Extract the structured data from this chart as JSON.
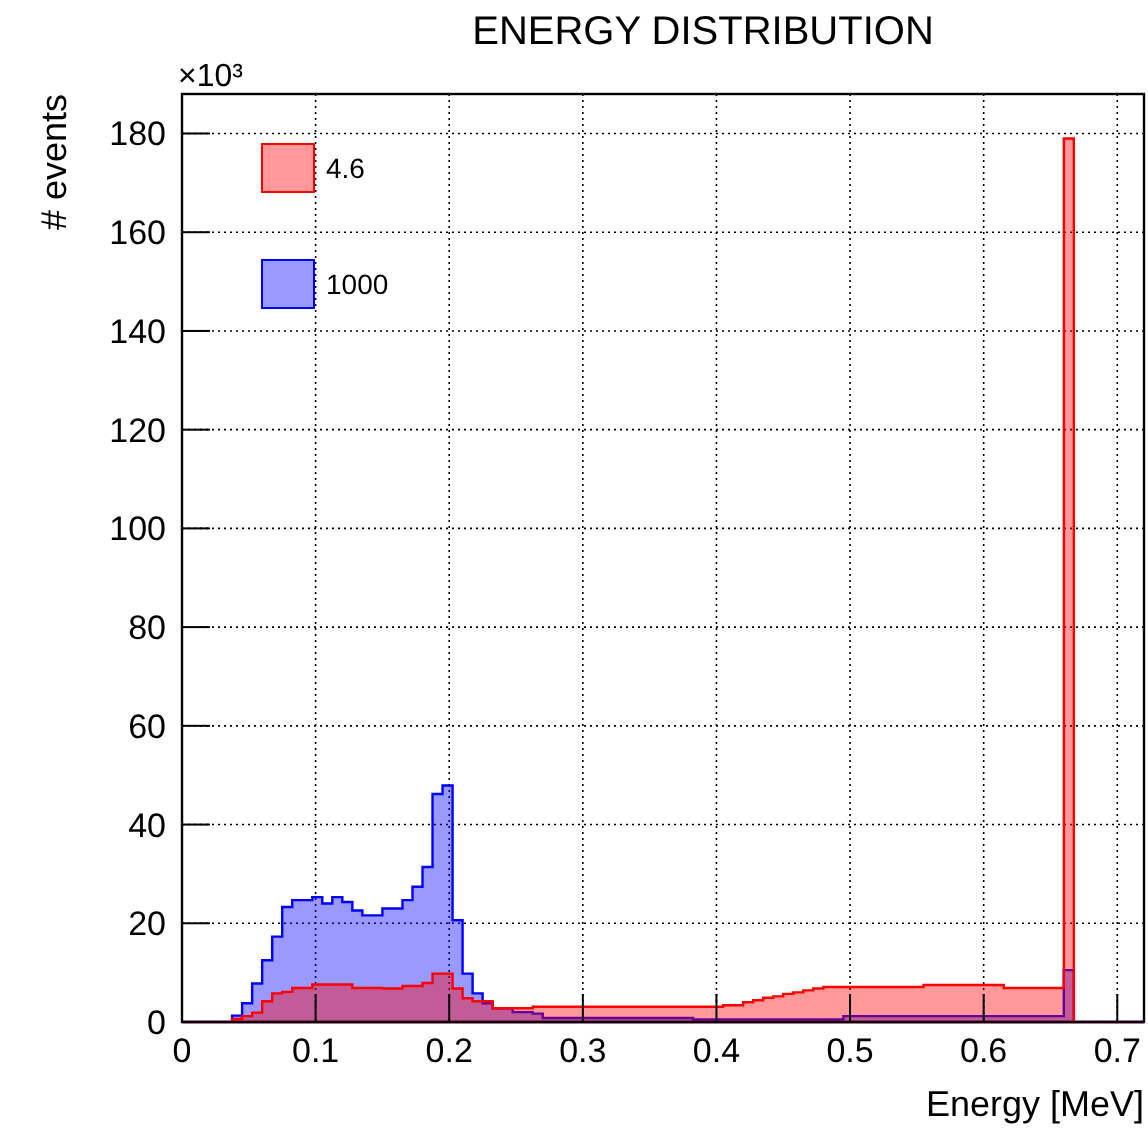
{
  "chart_data": {
    "type": "histogram",
    "title": "ENERGY DISTRIBUTION",
    "xlabel": "Energy [MeV]",
    "ylabel": "# events",
    "annotations": [
      "×10³"
    ],
    "bins": [
      0,
      0.0075,
      0.015,
      0.0225,
      0.03,
      0.0375,
      0.045,
      0.0525,
      0.06,
      0.0675,
      0.075,
      0.0825,
      0.09,
      0.0975,
      0.105,
      0.1125,
      0.12,
      0.1275,
      0.135,
      0.1425,
      0.15,
      0.1575,
      0.165,
      0.1725,
      0.18,
      0.1875,
      0.195,
      0.2025,
      0.21,
      0.2175,
      0.225,
      0.2325,
      0.24,
      0.2475,
      0.255,
      0.2625,
      0.27,
      0.2775,
      0.285,
      0.2925,
      0.3,
      0.3075,
      0.315,
      0.3225,
      0.33,
      0.3375,
      0.345,
      0.3525,
      0.36,
      0.3675,
      0.375,
      0.3825,
      0.39,
      0.3975,
      0.405,
      0.4125,
      0.42,
      0.4275,
      0.435,
      0.4425,
      0.45,
      0.4575,
      0.465,
      0.4725,
      0.48,
      0.4875,
      0.495,
      0.5025,
      0.51,
      0.5175,
      0.525,
      0.5325,
      0.54,
      0.5475,
      0.555,
      0.5625,
      0.57,
      0.5775,
      0.585,
      0.5925,
      0.6,
      0.6075,
      0.615,
      0.6225,
      0.63,
      0.6375,
      0.645,
      0.6525,
      0.66,
      0.6675,
      0.675,
      0.6825,
      0.69,
      0.6975,
      0.705,
      0.7125,
      0.72
    ],
    "series": [
      {
        "name": "4.6",
        "color": "#ff0000",
        "values": [
          0,
          0,
          0,
          0,
          0,
          0.6,
          1.2,
          1.9,
          4.2,
          5.8,
          6.1,
          6.9,
          6.9,
          7.6,
          7.6,
          7.6,
          7.6,
          6.9,
          6.9,
          6.9,
          6.8,
          6.8,
          7.3,
          7.3,
          7.9,
          9.8,
          9.8,
          6.8,
          4.8,
          4.2,
          4.2,
          2.8,
          2.8,
          2.8,
          2.8,
          3.1,
          3.1,
          3.1,
          3.1,
          3.1,
          3.1,
          3.1,
          3.1,
          3.1,
          3.1,
          3.1,
          3.1,
          3.1,
          3.1,
          3.1,
          3.1,
          3.1,
          3.1,
          3.1,
          3.4,
          3.4,
          4,
          4.4,
          4.9,
          5.2,
          5.7,
          6,
          6.4,
          6.8,
          7.1,
          7.1,
          7.1,
          7.1,
          7.1,
          7.1,
          7.1,
          7.1,
          7.1,
          7.1,
          7.5,
          7.5,
          7.5,
          7.5,
          7.5,
          7.5,
          7.5,
          7.5,
          6.9,
          6.9,
          6.9,
          6.9,
          6.9,
          6.9,
          179,
          0,
          0,
          0,
          0,
          0,
          0,
          0
        ]
      },
      {
        "name": "1000",
        "color": "#0000ff",
        "values": [
          0,
          0,
          0,
          0,
          0,
          1.3,
          3.8,
          7.8,
          12.5,
          17.3,
          23.3,
          24.7,
          24.7,
          25.3,
          24,
          25.3,
          24.3,
          22.6,
          21.6,
          21.6,
          23,
          23,
          24.7,
          27.4,
          31.4,
          46.2,
          47.9,
          20.6,
          9.8,
          5.8,
          3.8,
          2.8,
          2.8,
          2,
          2,
          1.7,
          0.8,
          0.8,
          0.8,
          0.8,
          0.8,
          0.8,
          0.8,
          0.8,
          0.8,
          0.8,
          0.8,
          0.8,
          0.8,
          0.8,
          0.8,
          0.5,
          0.5,
          0.5,
          0.5,
          0.5,
          0.5,
          0.5,
          0.5,
          0.5,
          0.5,
          0.5,
          0.5,
          0.5,
          0.5,
          0.5,
          1.2,
          1.2,
          1.2,
          1.2,
          1.2,
          1.2,
          1.2,
          1.2,
          1.2,
          1.2,
          1.2,
          1.2,
          1.2,
          1.2,
          1.2,
          1.2,
          1.2,
          1.2,
          1.2,
          1.2,
          1.2,
          1.2,
          10.5,
          0,
          0,
          0,
          0,
          0,
          0,
          0
        ]
      }
    ],
    "xlim": [
      0,
      0.72
    ],
    "xticks": [
      0,
      0.1,
      0.2,
      0.3,
      0.4,
      0.5,
      0.6,
      0.7
    ],
    "ylim": [
      0,
      188
    ],
    "yticks": [
      0,
      20,
      40,
      60,
      80,
      100,
      120,
      140,
      160,
      180
    ],
    "grid": true,
    "legend": "top left"
  }
}
